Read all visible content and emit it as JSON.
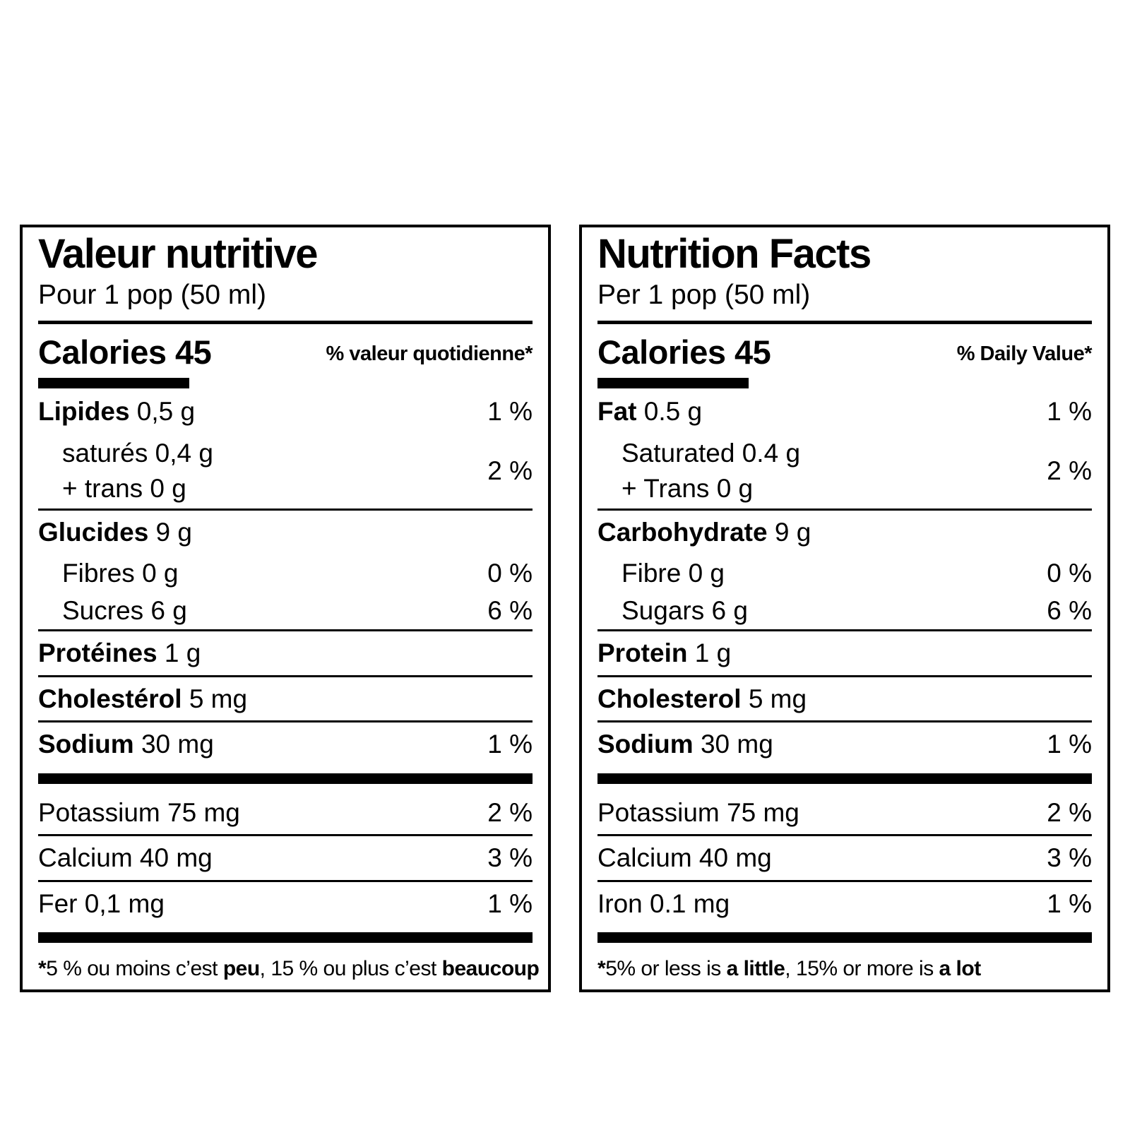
{
  "page": {
    "background": "#ffffff",
    "ink": "#000000"
  },
  "panels": [
    {
      "lang": "fr",
      "title": "Valeur nutritive",
      "serving": "Pour 1 pop (50 ml)",
      "calories": "Calories 45",
      "dv_header": "% valeur quotidienne*",
      "rows": [
        {
          "kind": "main",
          "name": "Lipides",
          "amount": "0,5 g",
          "pct": "1 %",
          "rule": false
        },
        {
          "kind": "group",
          "lines": [
            "saturés 0,4 g",
            "+ trans 0 g"
          ],
          "pct": "2 %"
        },
        {
          "kind": "main",
          "name": "Glucides",
          "amount": "9 g",
          "pct": "",
          "rule": true
        },
        {
          "kind": "sub",
          "name": "Fibres",
          "amount": "0 g",
          "pct": "0 %"
        },
        {
          "kind": "sub",
          "name": "Sucres",
          "amount": "6 g",
          "pct": "6 %"
        },
        {
          "kind": "main",
          "name": "Protéines",
          "amount": "1 g",
          "pct": "",
          "rule": true
        },
        {
          "kind": "main",
          "name": "Cholestérol",
          "amount": "5 mg",
          "pct": "",
          "rule": true
        },
        {
          "kind": "main",
          "name": "Sodium",
          "amount": "30 mg",
          "pct": "1 %",
          "rule": true
        },
        {
          "kind": "bar"
        },
        {
          "kind": "plain",
          "name": "Potassium",
          "amount": "75 mg",
          "pct": "2 %",
          "rule": false
        },
        {
          "kind": "plain",
          "name": "Calcium",
          "amount": "40 mg",
          "pct": "3 %",
          "rule": true
        },
        {
          "kind": "plain",
          "name": "Fer",
          "amount": "0,1 mg",
          "pct": "1 %",
          "rule": true
        },
        {
          "kind": "bar"
        }
      ],
      "footnote": [
        {
          "text": "*",
          "bold": true
        },
        {
          "text": "5 % ou moins c’est ",
          "bold": false
        },
        {
          "text": "peu",
          "bold": true
        },
        {
          "text": ", 15 % ou plus c’est ",
          "bold": false
        },
        {
          "text": "beaucoup",
          "bold": true
        }
      ]
    },
    {
      "lang": "en",
      "title": "Nutrition Facts",
      "serving": "Per 1 pop (50 ml)",
      "calories": "Calories 45",
      "dv_header": "% Daily Value*",
      "rows": [
        {
          "kind": "main",
          "name": "Fat",
          "amount": "0.5 g",
          "pct": "1 %",
          "rule": false
        },
        {
          "kind": "group",
          "lines": [
            "Saturated 0.4 g",
            "+ Trans 0 g"
          ],
          "pct": "2 %"
        },
        {
          "kind": "main",
          "name": "Carbohydrate",
          "amount": "9 g",
          "pct": "",
          "rule": true
        },
        {
          "kind": "sub",
          "name": "Fibre",
          "amount": "0 g",
          "pct": "0 %"
        },
        {
          "kind": "sub",
          "name": "Sugars",
          "amount": "6 g",
          "pct": "6 %"
        },
        {
          "kind": "main",
          "name": "Protein",
          "amount": "1 g",
          "pct": "",
          "rule": true
        },
        {
          "kind": "main",
          "name": "Cholesterol",
          "amount": "5 mg",
          "pct": "",
          "rule": true
        },
        {
          "kind": "main",
          "name": "Sodium",
          "amount": "30 mg",
          "pct": "1 %",
          "rule": true
        },
        {
          "kind": "bar"
        },
        {
          "kind": "plain",
          "name": "Potassium",
          "amount": "75 mg",
          "pct": "2 %",
          "rule": false
        },
        {
          "kind": "plain",
          "name": "Calcium",
          "amount": "40 mg",
          "pct": "3 %",
          "rule": true
        },
        {
          "kind": "plain",
          "name": "Iron",
          "amount": "0.1 mg",
          "pct": "1 %",
          "rule": true
        },
        {
          "kind": "bar"
        }
      ],
      "footnote": [
        {
          "text": "*",
          "bold": true
        },
        {
          "text": "5% or less is ",
          "bold": false
        },
        {
          "text": "a little",
          "bold": true
        },
        {
          "text": ", 15% or more is ",
          "bold": false
        },
        {
          "text": "a lot",
          "bold": true
        }
      ]
    }
  ]
}
